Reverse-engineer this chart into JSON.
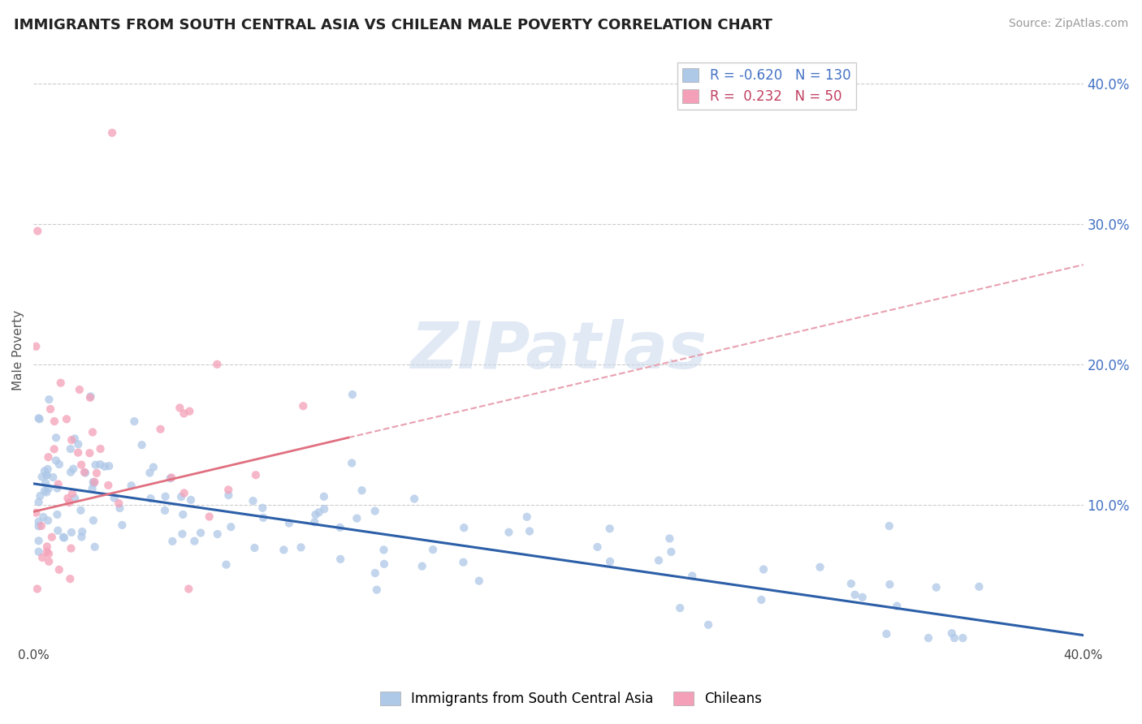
{
  "title": "IMMIGRANTS FROM SOUTH CENTRAL ASIA VS CHILEAN MALE POVERTY CORRELATION CHART",
  "source": "Source: ZipAtlas.com",
  "ylabel": "Male Poverty",
  "xlim": [
    0,
    0.4
  ],
  "ylim": [
    0,
    0.42
  ],
  "ytick_vals": [
    0.1,
    0.2,
    0.3,
    0.4
  ],
  "ytick_labels": [
    "10.0%",
    "20.0%",
    "30.0%",
    "40.0%"
  ],
  "blue_color": "#aec8e8",
  "pink_color": "#f4a0b8",
  "blue_line_color": "#2c5fa8",
  "pink_line_color": "#e07080",
  "pink_line_dashed_color": "#e8a0b0",
  "R_blue": -0.62,
  "N_blue": 130,
  "R_pink": 0.232,
  "N_pink": 50,
  "legend_label_blue": "Immigrants from South Central Asia",
  "legend_label_pink": "Chileans",
  "watermark": "ZIPatlas",
  "background_color": "#ffffff",
  "tick_color": "#4472c4",
  "legend_R_color_blue": "#4472c4",
  "legend_R_color_pink": "#c04060",
  "blue_line_intercept": 0.115,
  "blue_line_slope": -0.27,
  "pink_line_intercept": 0.095,
  "pink_line_slope": 0.44
}
